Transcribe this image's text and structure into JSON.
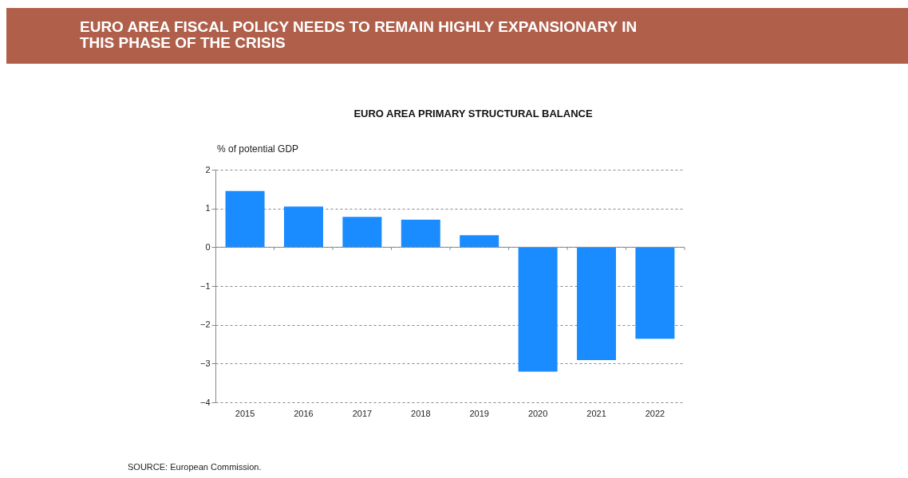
{
  "chart_data": {
    "type": "bar",
    "title": "EURO AREA FISCAL POLICY NEEDS TO REMAIN HIGHLY EXPANSIONARY IN\nTHIS PHASE OF THE CRISIS",
    "subtitle": "EURO AREA PRIMARY STRUCTURAL BALANCE",
    "ylabel": "% of potential GDP",
    "annotations": [
      "SOURCE: European Commission."
    ],
    "categories": [
      "2015",
      "2016",
      "2017",
      "2018",
      "2019",
      "2020",
      "2021",
      "2022"
    ],
    "series": [
      {
        "color": "#1a8cff",
        "values": [
          1.45,
          1.05,
          0.78,
          0.71,
          0.31,
          -3.21,
          -2.91,
          -2.36
        ]
      }
    ],
    "ylim": [
      -4,
      2
    ],
    "yticks": [
      -4,
      -3,
      -2,
      -1,
      0,
      1,
      2
    ],
    "grid": "y"
  }
}
